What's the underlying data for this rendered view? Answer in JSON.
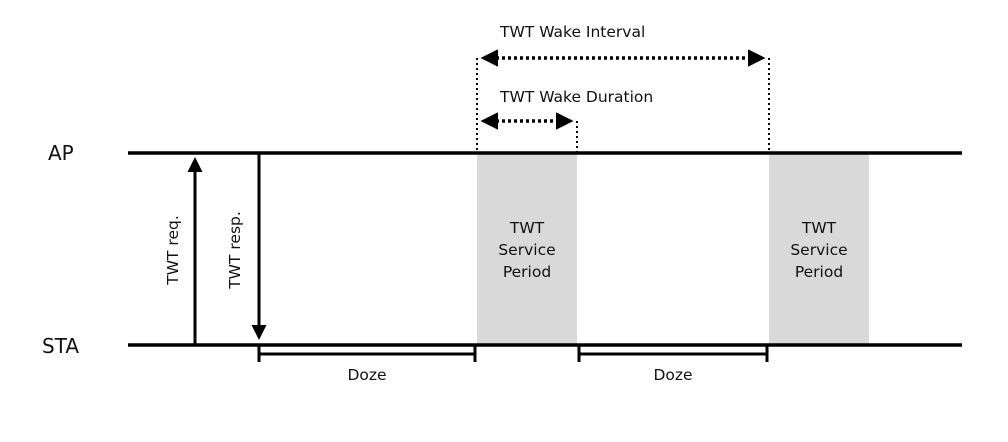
{
  "lines": {
    "ap_label": "AP",
    "sta_label": "STA"
  },
  "messages": {
    "request_label": "TWT req.",
    "response_label": "TWT resp."
  },
  "intervals": {
    "wake_interval_label": "TWT Wake Interval",
    "wake_duration_label": "TWT Wake Duration"
  },
  "service_periods": [
    {
      "line1": "TWT",
      "line2": "Service",
      "line3": "Period"
    },
    {
      "line1": "TWT",
      "line2": "Service",
      "line3": "Period"
    }
  ],
  "doze_periods": [
    {
      "label": "Doze"
    },
    {
      "label": "Doze"
    }
  ],
  "colors": {
    "line": "#000000",
    "service_period_fill": "#d9d9d9",
    "text": "#111111"
  }
}
